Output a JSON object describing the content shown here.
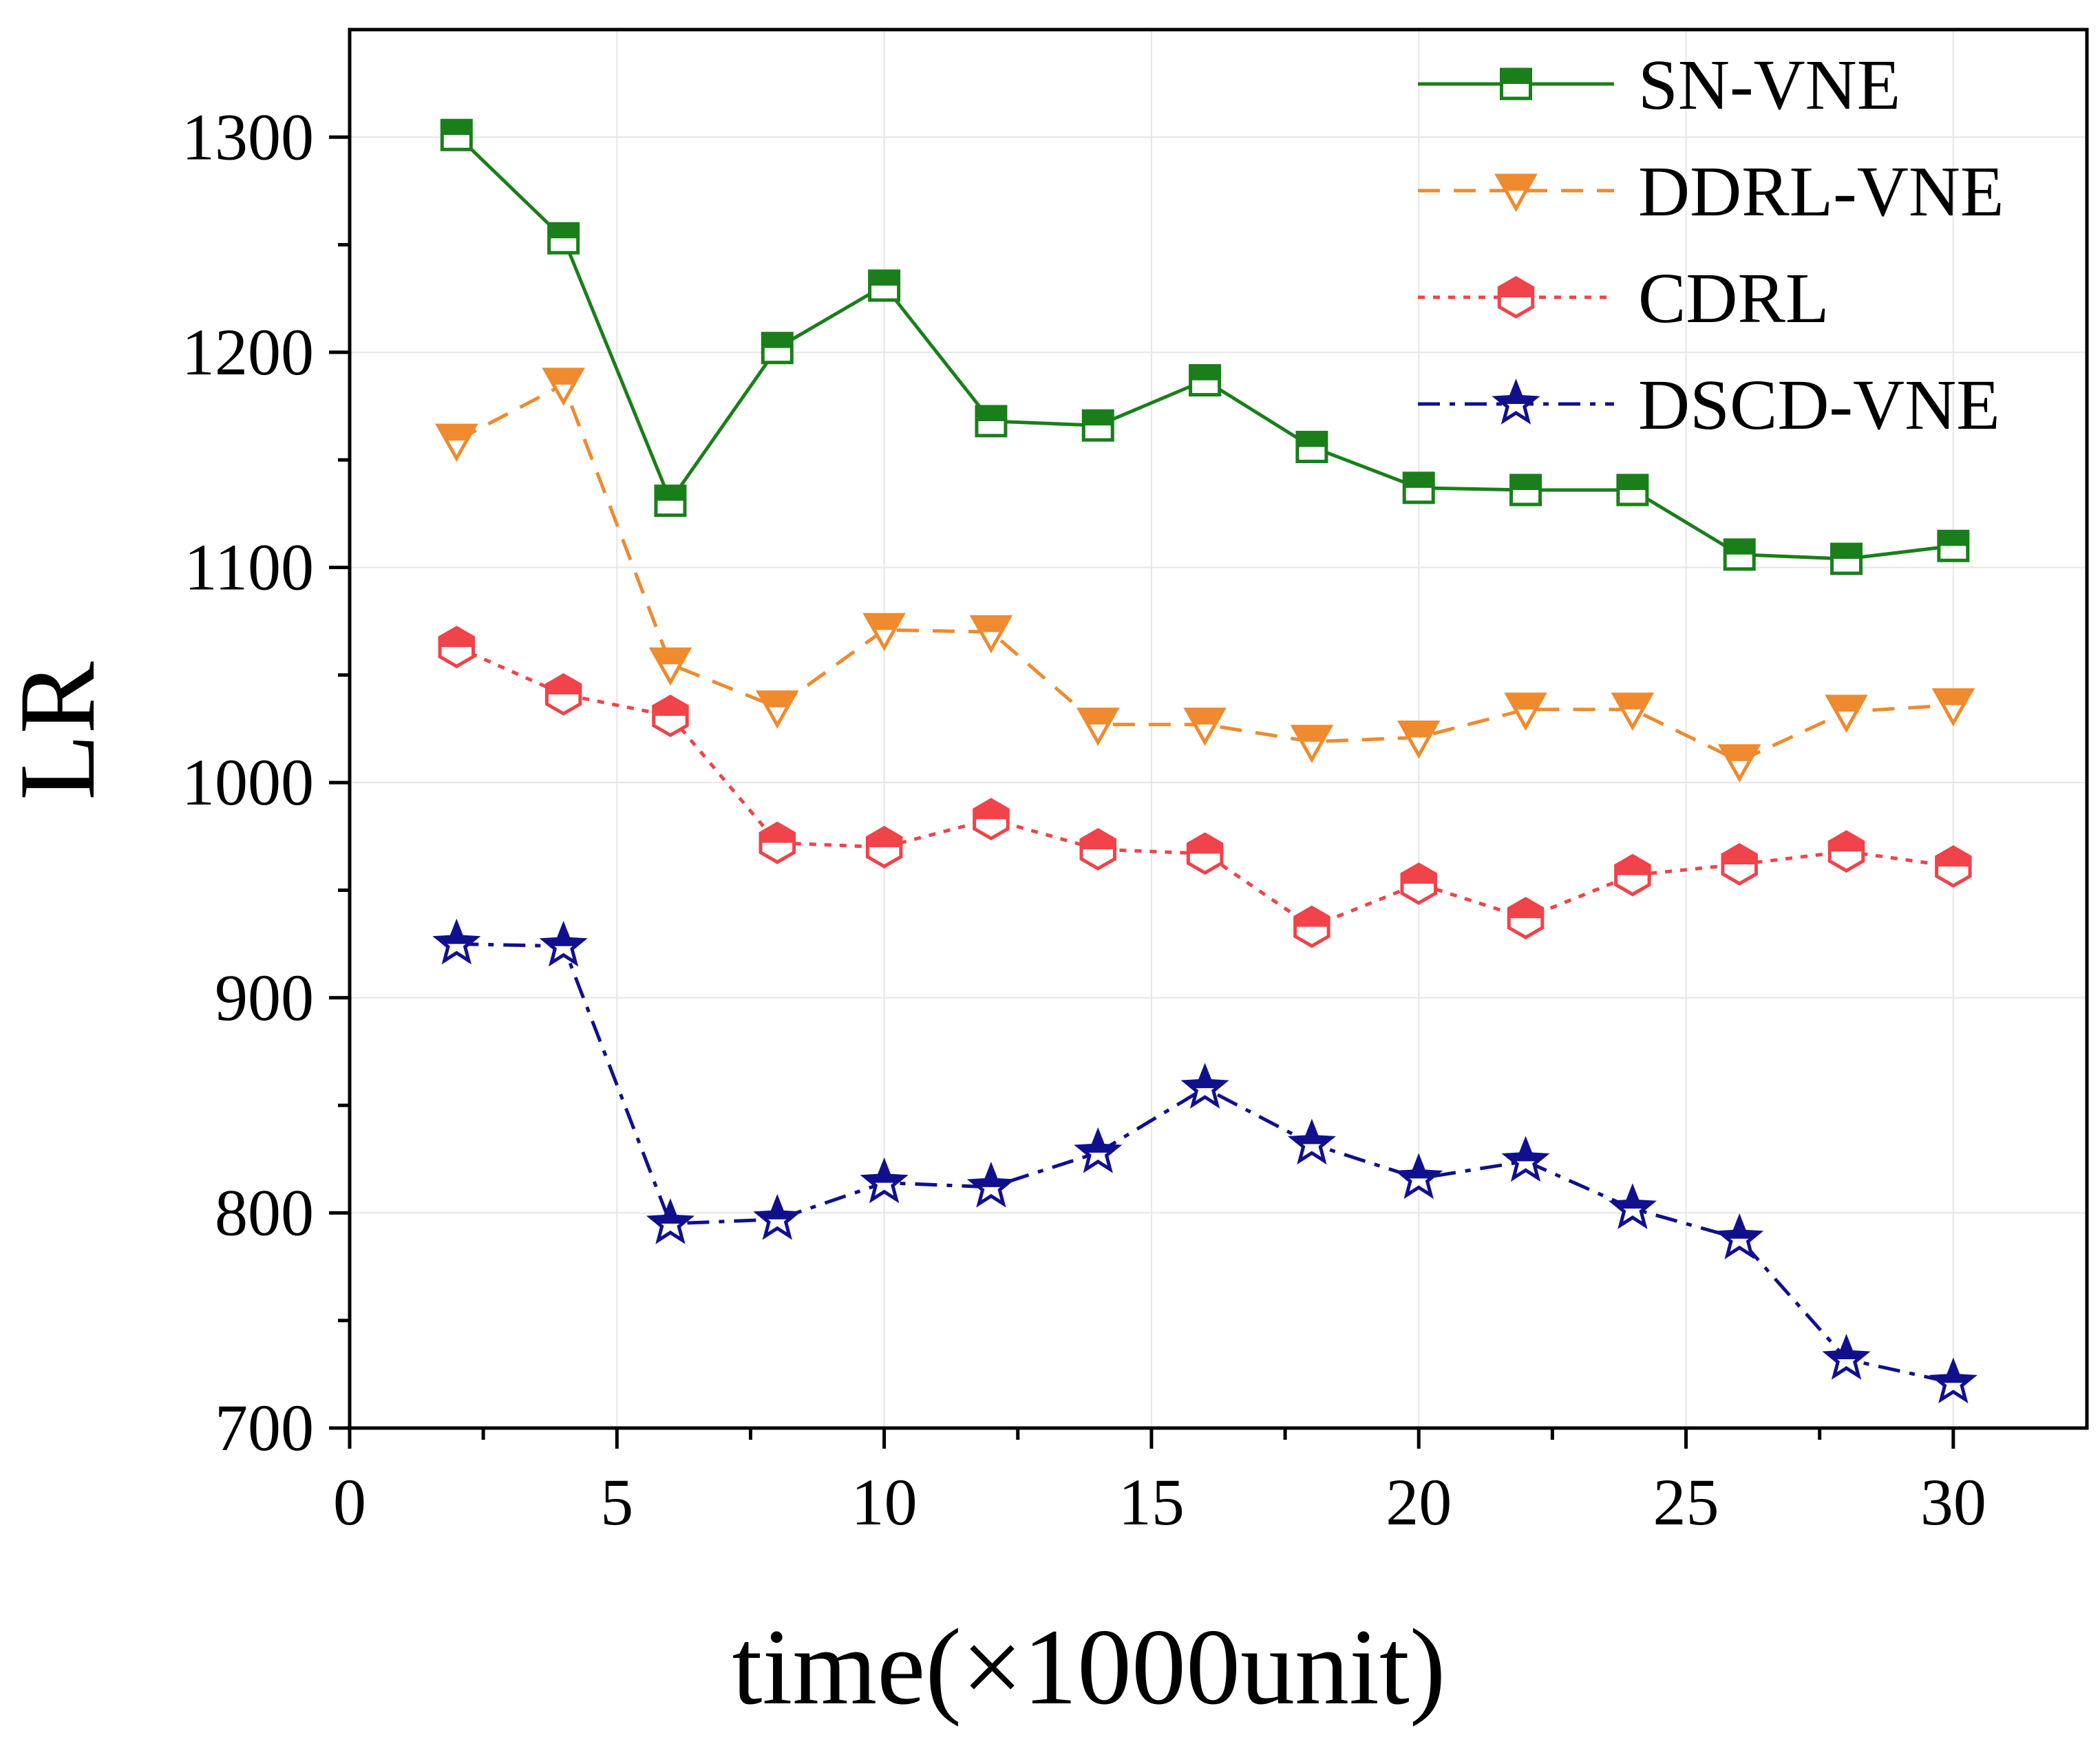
{
  "chart_data": {
    "type": "line",
    "title": "",
    "xlabel": "time(×1000unit)",
    "ylabel": "LR",
    "xlim": [
      0,
      32.5
    ],
    "ylim": [
      700,
      1350
    ],
    "xticks": [
      0,
      5,
      10,
      15,
      20,
      25,
      30
    ],
    "yticks": [
      700,
      800,
      900,
      1000,
      1100,
      1200,
      1300
    ],
    "xtick_labels": [
      "0",
      "5",
      "10",
      "15",
      "20",
      "25",
      "30"
    ],
    "ytick_labels": [
      "700",
      "800",
      "900",
      "1000",
      "1100",
      "1200",
      "1300"
    ],
    "grid": true,
    "legend_position": "top-right",
    "x": [
      2,
      4,
      6,
      8,
      10,
      12,
      14,
      16,
      18,
      20,
      22,
      24,
      26,
      28,
      30
    ],
    "series": [
      {
        "name": "SN-VNE",
        "color": "#1a7f1a",
        "line": "solid",
        "marker": "square-half",
        "values": [
          1301,
          1253,
          1131,
          1202,
          1231,
          1168,
          1166,
          1187,
          1156,
          1137,
          1136,
          1136,
          1106,
          1104,
          1110
        ]
      },
      {
        "name": "DDRL-VNE",
        "color": "#ef8a2e",
        "line": "dash",
        "marker": "triangle-down-half",
        "values": [
          1159,
          1185,
          1055,
          1035,
          1071,
          1070,
          1027,
          1027,
          1019,
          1021,
          1034,
          1034,
          1010,
          1033,
          1036
        ]
      },
      {
        "name": "CDRL",
        "color": "#f0434a",
        "line": "dot",
        "marker": "hexagon-half",
        "values": [
          1063,
          1041,
          1031,
          972,
          970,
          983,
          969,
          967,
          933,
          953,
          937,
          957,
          962,
          968,
          961
        ]
      },
      {
        "name": "DSCD-VNE",
        "color": "#10108f",
        "line": "dashdot",
        "marker": "star-half",
        "values": [
          925,
          924,
          795,
          797,
          814,
          812,
          828,
          858,
          832,
          816,
          824,
          802,
          788,
          732,
          721
        ]
      }
    ]
  }
}
